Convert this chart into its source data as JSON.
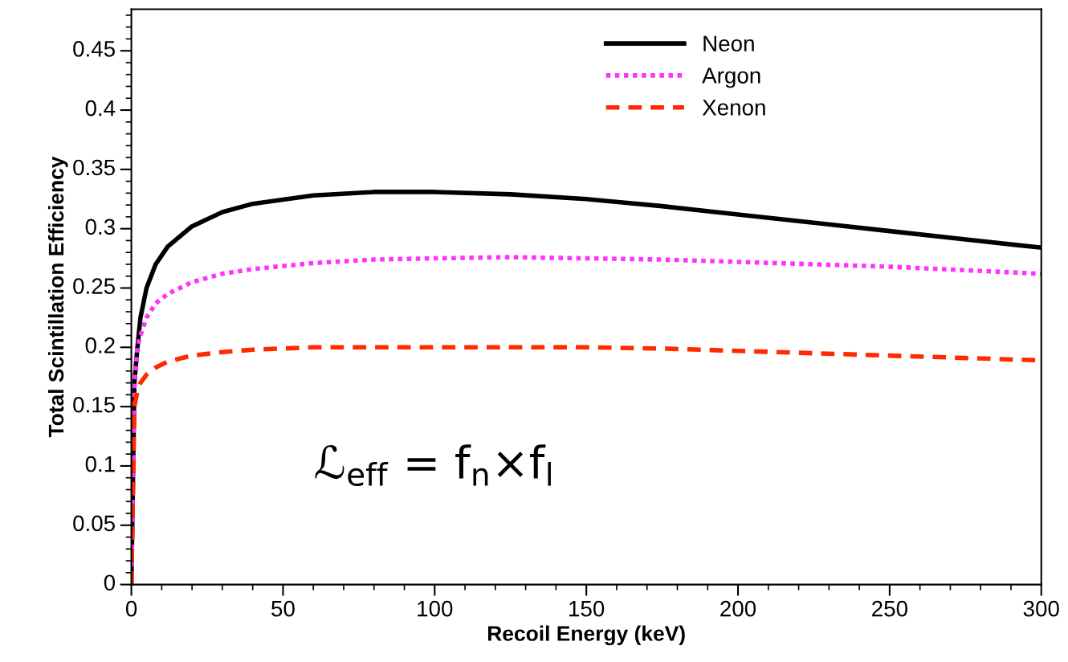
{
  "chart_data": {
    "type": "line",
    "xlabel": "Recoil Energy (keV)",
    "ylabel": "Total Scintillation Efficiency",
    "xlim": [
      0,
      300
    ],
    "ylim": [
      0,
      0.485
    ],
    "xticks": [
      0,
      50,
      100,
      150,
      200,
      250,
      300
    ],
    "yticks": [
      0,
      {
        "value": 0.05,
        "label": "0.05"
      },
      {
        "value": 0.1,
        "label": "0.1"
      },
      {
        "value": 0.15,
        "label": "0.15"
      },
      {
        "value": 0.2,
        "label": "0.2"
      },
      {
        "value": 0.25,
        "label": "0.25"
      },
      {
        "value": 0.3,
        "label": "0.3"
      },
      {
        "value": 0.35,
        "label": "0.35"
      },
      {
        "value": 0.4,
        "label": "0.4"
      },
      {
        "value": 0.45,
        "label": "0.45"
      }
    ],
    "grid": false,
    "legend": "top right",
    "marker": "none",
    "series": [
      {
        "name": "Neon",
        "color": "#000000",
        "line_style": "solid",
        "x": [
          0,
          1,
          2,
          3,
          5,
          8,
          12,
          20,
          30,
          40,
          60,
          80,
          100,
          125,
          150,
          175,
          200,
          225,
          250,
          275,
          300
        ],
        "values": [
          0,
          0.17,
          0.2,
          0.225,
          0.25,
          0.27,
          0.285,
          0.302,
          0.314,
          0.321,
          0.328,
          0.331,
          0.331,
          0.329,
          0.325,
          0.319,
          0.312,
          0.305,
          0.298,
          0.291,
          0.284
        ]
      },
      {
        "name": "Argon",
        "color": "#ff33ff",
        "line_style": "dotted",
        "x": [
          0,
          1,
          2,
          3,
          5,
          8,
          12,
          20,
          30,
          40,
          60,
          80,
          100,
          125,
          150,
          175,
          200,
          225,
          250,
          275,
          300
        ],
        "values": [
          0,
          0.17,
          0.2,
          0.21,
          0.225,
          0.237,
          0.245,
          0.255,
          0.262,
          0.266,
          0.271,
          0.274,
          0.275,
          0.276,
          0.275,
          0.274,
          0.272,
          0.27,
          0.268,
          0.265,
          0.262
        ]
      },
      {
        "name": "Xenon",
        "color": "#ff2a00",
        "line_style": "dashed",
        "x": [
          0,
          1,
          2,
          3,
          5,
          8,
          12,
          20,
          30,
          40,
          60,
          80,
          100,
          125,
          150,
          175,
          200,
          225,
          250,
          275,
          300
        ],
        "values": [
          0,
          0.15,
          0.163,
          0.17,
          0.177,
          0.183,
          0.188,
          0.193,
          0.196,
          0.198,
          0.2,
          0.2,
          0.2,
          0.2,
          0.2,
          0.199,
          0.197,
          0.195,
          0.193,
          0.191,
          0.189
        ]
      }
    ],
    "annotations": [
      "ℒ$_{eff}$ = f$_{n}$×f$_{l}$"
    ]
  }
}
